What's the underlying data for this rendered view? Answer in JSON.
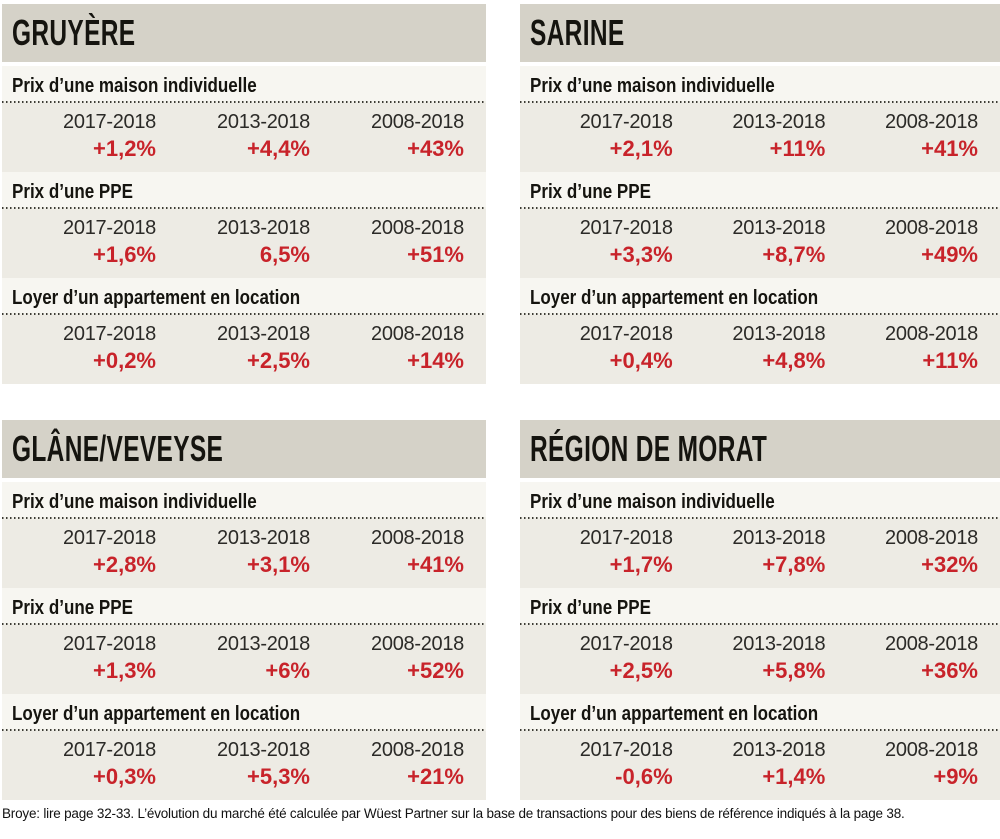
{
  "colors": {
    "accent_red": "#c8232a",
    "header_band": "#d5d2c8",
    "label_row_bg": "#f7f6f1",
    "data_zone_bg": "#edebe4"
  },
  "chart_data": {
    "type": "table",
    "periods": [
      "2017-2018",
      "2013-2018",
      "2008-2018"
    ],
    "regions": [
      {
        "name": "GRUYÈRE",
        "metrics": [
          {
            "label": "Prix d’une maison individuelle",
            "values": [
              "+1,2%",
              "+4,4%",
              "+43%"
            ]
          },
          {
            "label": "Prix d’une PPE",
            "values": [
              "+1,6%",
              "6,5%",
              "+51%"
            ]
          },
          {
            "label": "Loyer d’un appartement en location",
            "values": [
              "+0,2%",
              "+2,5%",
              "+14%"
            ]
          }
        ]
      },
      {
        "name": "SARINE",
        "metrics": [
          {
            "label": "Prix d’une maison individuelle",
            "values": [
              "+2,1%",
              "+11%",
              "+41%"
            ]
          },
          {
            "label": "Prix d’une PPE",
            "values": [
              "+3,3%",
              "+8,7%",
              "+49%"
            ]
          },
          {
            "label": "Loyer d’un appartement en location",
            "values": [
              "+0,4%",
              "+4,8%",
              "+11%"
            ]
          }
        ]
      },
      {
        "name": "GLÂNE/VEVEYSE",
        "metrics": [
          {
            "label": "Prix d’une maison individuelle",
            "values": [
              "+2,8%",
              "+3,1%",
              "+41%"
            ]
          },
          {
            "label": "Prix d’une PPE",
            "values": [
              "+1,3%",
              "+6%",
              "+52%"
            ]
          },
          {
            "label": "Loyer d’un appartement en location",
            "values": [
              "+0,3%",
              "+5,3%",
              "+21%"
            ]
          }
        ]
      },
      {
        "name": "RÉGION DE MORAT",
        "metrics": [
          {
            "label": "Prix d’une maison individuelle",
            "values": [
              "+1,7%",
              "+7,8%",
              "+32%"
            ]
          },
          {
            "label": "Prix d’une PPE",
            "values": [
              "+2,5%",
              "+5,8%",
              "+36%"
            ]
          },
          {
            "label": "Loyer d’un appartement en location",
            "values": [
              "-0,6%",
              "+1,4%",
              "+9%"
            ]
          }
        ]
      }
    ],
    "footnote": "Broye: lire page 32-33. L’évolution du marché été calculée par Wüest Partner sur la base de transactions pour des biens de référence indiqués à la page 38."
  }
}
